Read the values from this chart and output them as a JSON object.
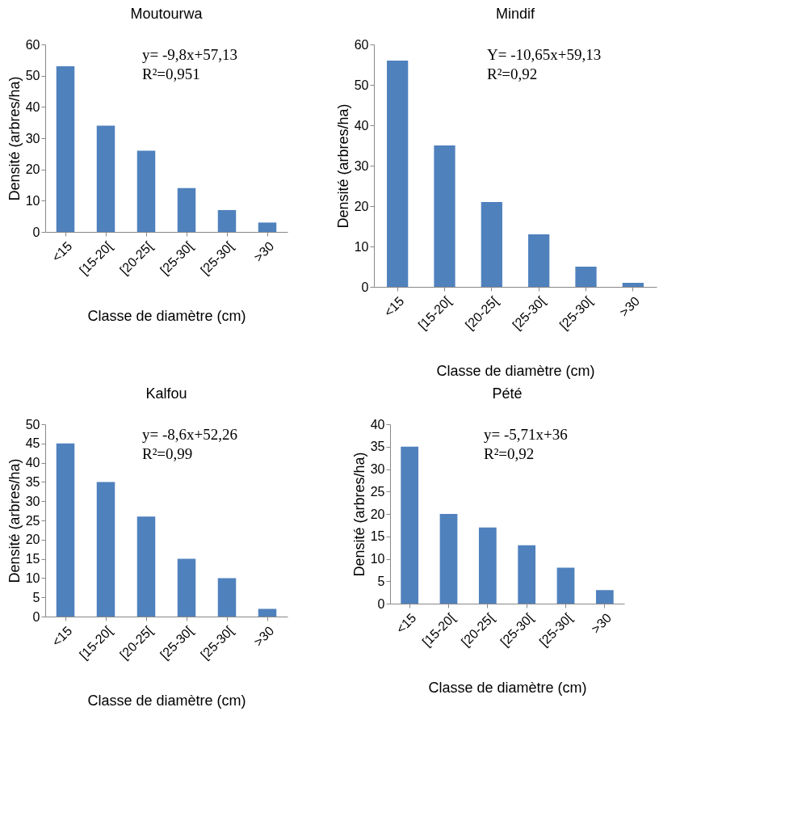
{
  "chart_data": [
    {
      "type": "bar",
      "title": "Moutourwa",
      "xlabel": "Classe de diamètre (cm)",
      "ylabel": "Densité (arbres/ha)",
      "categories": [
        "<15",
        "[15-20[",
        "[20-25[",
        "[25-30[",
        "[25-30[",
        ">30"
      ],
      "values": [
        53,
        34,
        26,
        14,
        7,
        3
      ],
      "color": "#4f81bd",
      "ylim": [
        0,
        60
      ],
      "yticks": [
        0,
        10,
        20,
        30,
        40,
        50,
        60
      ],
      "annotations": [
        "y= -9,8x+57,13",
        "R²=0,951"
      ]
    },
    {
      "type": "bar",
      "title": "Mindif",
      "xlabel": "Classe de diamètre (cm)",
      "ylabel": "Densité (arbres/ha)",
      "categories": [
        "<15",
        "[15-20[",
        "[20-25[",
        "[25-30[",
        "[25-30[",
        ">30"
      ],
      "values": [
        56,
        35,
        21,
        13,
        5,
        1
      ],
      "color": "#4f81bd",
      "ylim": [
        0,
        60
      ],
      "yticks": [
        0,
        10,
        20,
        30,
        40,
        50,
        60
      ],
      "annotations": [
        "Y= -10,65x+59,13",
        "R²=0,92"
      ]
    },
    {
      "type": "bar",
      "title": "Kalfou",
      "xlabel": "Classe de diamètre (cm)",
      "ylabel": "Densité (arbres/ha)",
      "categories": [
        "<15",
        "[15-20[",
        "[20-25[",
        "[25-30[",
        "[25-30[",
        ">30"
      ],
      "values": [
        45,
        35,
        26,
        15,
        10,
        2
      ],
      "color": "#4f81bd",
      "ylim": [
        0,
        50
      ],
      "yticks": [
        0,
        5,
        10,
        15,
        20,
        25,
        30,
        35,
        40,
        45,
        50
      ],
      "annotations": [
        "y= -8,6x+52,26",
        "R²=0,99"
      ]
    },
    {
      "type": "bar",
      "title": "Pété",
      "xlabel": "Classe de diamètre (cm)",
      "ylabel": "Densité (arbres/ha)",
      "categories": [
        "<15",
        "[15-20[",
        "[20-25[",
        "[25-30[",
        "[25-30[",
        ">30"
      ],
      "values": [
        35,
        20,
        17,
        13,
        8,
        3
      ],
      "color": "#4f81bd",
      "ylim": [
        0,
        40
      ],
      "yticks": [
        0,
        5,
        10,
        15,
        20,
        25,
        30,
        35,
        40
      ],
      "annotations": [
        "y= -5,71x+36",
        "R²=0,92"
      ]
    }
  ]
}
